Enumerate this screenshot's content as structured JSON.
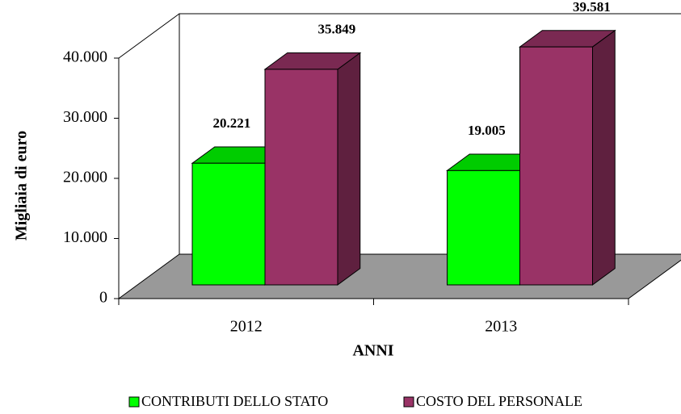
{
  "chart_data": {
    "type": "bar3d",
    "y_label": "Migliaia di euro",
    "x_label": "ANNI",
    "categories": [
      "2012",
      "2013"
    ],
    "series": [
      {
        "name": "CONTRIBUTI DELLO STATO",
        "color": "#00ff00",
        "values": [
          20221,
          19005
        ],
        "value_labels": [
          "20.221",
          "19.005"
        ]
      },
      {
        "name": "COSTO DEL PERSONALE",
        "color": "#993366",
        "values": [
          35849,
          39581
        ],
        "value_labels": [
          "35.849",
          "39.581"
        ]
      }
    ],
    "ylim": [
      0,
      40000
    ],
    "yticks": [
      0,
      {
        "value": 10000,
        "label": "10.000"
      },
      {
        "value": 20000,
        "label": "20.000"
      },
      {
        "value": 30000,
        "label": "30.000"
      },
      {
        "value": 40000,
        "label": "40.000"
      }
    ],
    "floor_color": "#999999",
    "grid": false,
    "legend": "bottom"
  }
}
